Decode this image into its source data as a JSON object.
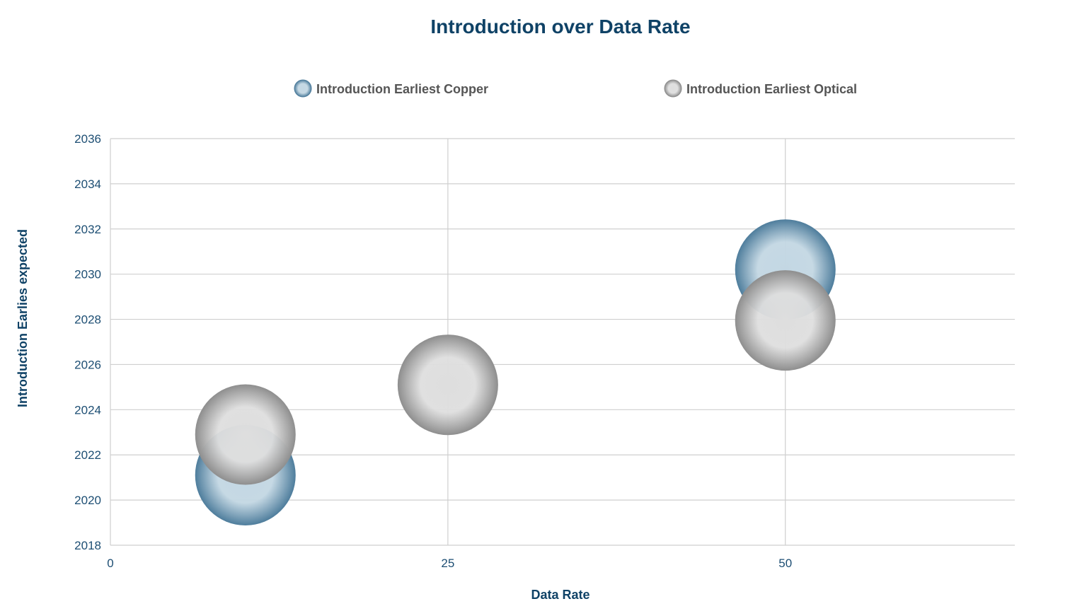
{
  "chart_data": {
    "type": "scatter",
    "subtype": "bubble",
    "title": "Introduction over Data Rate",
    "xlabel": "Data Rate",
    "ylabel": "Introduction Earlies expected",
    "xlim": [
      0,
      67
    ],
    "ylim": [
      2018,
      2036
    ],
    "xticks": [
      0,
      25,
      50
    ],
    "yticks": [
      2018,
      2020,
      2022,
      2024,
      2026,
      2028,
      2030,
      2032,
      2034,
      2036
    ],
    "grid": true,
    "legend_position": "top",
    "series": [
      {
        "name": "Introduction Earliest Copper",
        "color": "#4e7d9c",
        "highlight": "#c3d7e3",
        "points": [
          {
            "x": 10,
            "y": 2021.1
          },
          {
            "x": 50,
            "y": 2030.2
          }
        ]
      },
      {
        "name": "Introduction Earliest Optical",
        "color": "#8e8e8e",
        "highlight": "#dedede",
        "points": [
          {
            "x": 10,
            "y": 2022.9
          },
          {
            "x": 25,
            "y": 2025.1
          },
          {
            "x": 50,
            "y": 2027.95
          }
        ]
      }
    ]
  }
}
